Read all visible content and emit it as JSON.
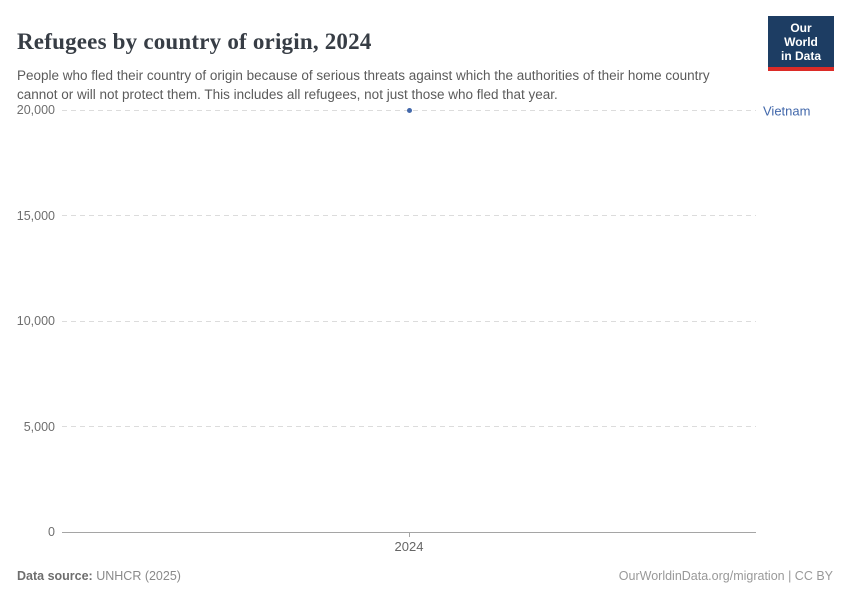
{
  "header": {
    "title": "Refugees by country of origin, 2024",
    "subtitle": "People who fled their country of origin because of serious threats against which the authorities of their home country cannot or will not protect them. This includes all refugees, not just those who fled that year.",
    "logo": {
      "line1": "Our World",
      "line2": "in Data"
    }
  },
  "chart_data": {
    "type": "scatter",
    "title": "Refugees by country of origin, 2024",
    "x": [
      2024
    ],
    "series": [
      {
        "name": "Vietnam",
        "values": [
          20000
        ]
      }
    ],
    "xlabel": "",
    "ylabel": "",
    "ylim": [
      0,
      20000
    ],
    "yticks": [
      0,
      5000,
      10000,
      15000,
      20000
    ],
    "ytick_labels": [
      "0",
      "5,000",
      "10,000",
      "15,000",
      "20,000"
    ],
    "xtick_labels": [
      "2024"
    ],
    "grid": "horizontal-dashed",
    "legend_position": "right-of-plot",
    "point_color": "#4268ab"
  },
  "footer": {
    "source_label": "Data source:",
    "source_value": " UNHCR (2025)",
    "rights": "OurWorldinData.org/migration | CC BY"
  },
  "colors": {
    "accent_blue": "#4268ab",
    "gridline": "#dcdcdc",
    "axis_line": "#a5a5a5",
    "title_text": "#373d45",
    "subtitle_text": "#5b5b5b",
    "logo_background": "#1d3d63",
    "logo_stripe": "#dc2b27"
  }
}
